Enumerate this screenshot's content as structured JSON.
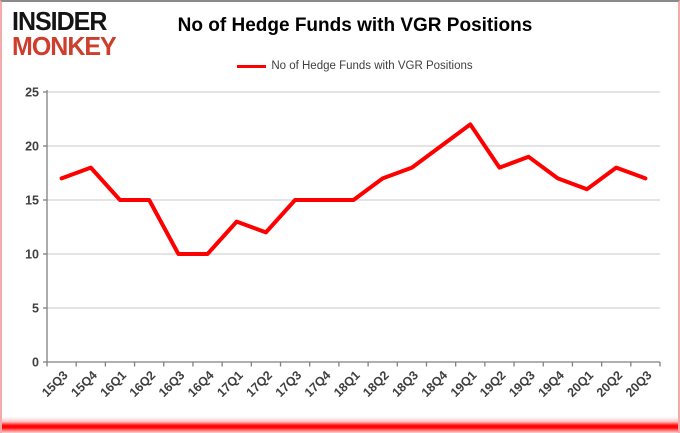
{
  "header": {
    "logo": {
      "line1": "INSIDER",
      "line2": "MONKEY",
      "line2_color": "#cd3e2c"
    },
    "title": "No of Hedge Funds with VGR Positions"
  },
  "legend": {
    "label": "No of Hedge Funds with VGR Positions",
    "swatch_color": "#ff0000"
  },
  "chart_data": {
    "type": "line",
    "title": "No of Hedge Funds with VGR Positions",
    "categories": [
      "15Q3",
      "15Q4",
      "16Q1",
      "16Q2",
      "16Q3",
      "16Q4",
      "17Q1",
      "17Q2",
      "17Q3",
      "17Q4",
      "18Q1",
      "18Q2",
      "18Q3",
      "18Q4",
      "19Q1",
      "19Q2",
      "19Q3",
      "19Q4",
      "20Q1",
      "20Q2",
      "20Q3"
    ],
    "series": [
      {
        "name": "No of Hedge Funds with VGR Positions",
        "color": "#ff0000",
        "values": [
          17,
          18,
          15,
          15,
          10,
          10,
          13,
          12,
          15,
          15,
          15,
          17,
          18,
          20,
          22,
          18,
          19,
          17,
          16,
          18,
          17
        ]
      }
    ],
    "xlabel": "",
    "ylabel": "",
    "ylim": [
      0,
      25
    ],
    "yticks": [
      0,
      5,
      10,
      15,
      20,
      25
    ],
    "grid": "horizontal",
    "legend_position": "top-center",
    "colors": {
      "line": "#ff0000",
      "gridline": "#c8c8c8",
      "axis": "#808080",
      "tick_text": "#3f3f3f"
    }
  }
}
